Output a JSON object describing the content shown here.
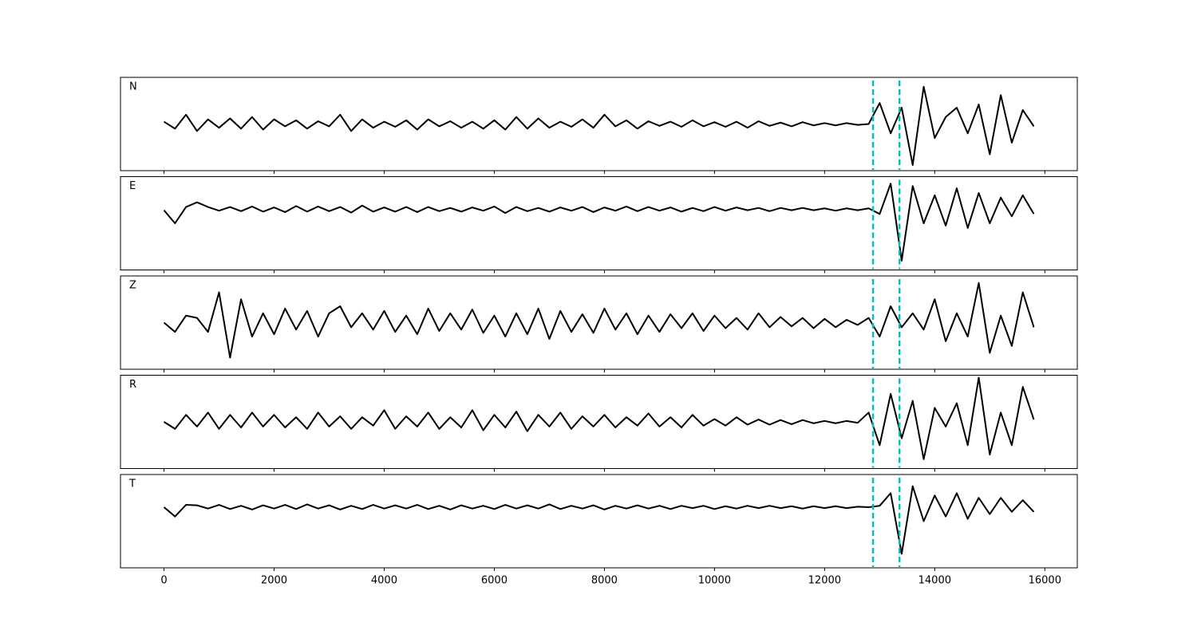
{
  "chart_data": {
    "type": "line",
    "x": [
      0,
      200,
      400,
      600,
      800,
      1000,
      1200,
      1400,
      1600,
      1800,
      2000,
      2200,
      2400,
      2600,
      2800,
      3000,
      3200,
      3400,
      3600,
      3800,
      4000,
      4200,
      4400,
      4600,
      4800,
      5000,
      5200,
      5400,
      5600,
      5800,
      6000,
      6200,
      6400,
      6600,
      6800,
      7000,
      7200,
      7400,
      7600,
      7800,
      8000,
      8200,
      8400,
      8600,
      8800,
      9000,
      9200,
      9400,
      9600,
      9800,
      10000,
      10200,
      10400,
      10600,
      10800,
      11000,
      11200,
      11400,
      11600,
      11800,
      12000,
      12200,
      12400,
      12600,
      12800,
      13000,
      13200,
      13400,
      13600,
      13800,
      14000,
      14200,
      14400,
      14600,
      14800,
      15000,
      15200,
      15400,
      15600,
      15800
    ],
    "xlim": [
      -790,
      16590
    ],
    "xticks": [
      0,
      2000,
      4000,
      6000,
      8000,
      10000,
      12000,
      14000,
      16000
    ],
    "vlines": [
      12880,
      13360
    ],
    "vline_color": "#00bfbf",
    "series": [
      {
        "name": "N",
        "color": "#000000",
        "ylim": [
          -1,
          1
        ],
        "values": [
          0.05,
          -0.1,
          0.2,
          -0.15,
          0.1,
          -0.08,
          0.12,
          -0.1,
          0.15,
          -0.12,
          0.1,
          -0.05,
          0.08,
          -0.1,
          0.06,
          -0.05,
          0.2,
          -0.15,
          0.1,
          -0.08,
          0.05,
          -0.06,
          0.08,
          -0.12,
          0.1,
          -0.05,
          0.06,
          -0.08,
          0.05,
          -0.1,
          0.08,
          -0.12,
          0.15,
          -0.1,
          0.12,
          -0.08,
          0.05,
          -0.06,
          0.1,
          -0.08,
          0.2,
          -0.05,
          0.08,
          -0.1,
          0.06,
          -0.04,
          0.05,
          -0.06,
          0.08,
          -0.05,
          0.04,
          -0.06,
          0.05,
          -0.08,
          0.06,
          -0.04,
          0.03,
          -0.05,
          0.04,
          -0.03,
          0.02,
          -0.03,
          0.02,
          -0.02,
          0.0,
          0.45,
          -0.2,
          0.35,
          -0.88,
          0.8,
          -0.3,
          0.15,
          0.35,
          -0.2,
          0.42,
          -0.65,
          0.62,
          -0.4,
          0.3,
          -0.05
        ]
      },
      {
        "name": "E",
        "color": "#000000",
        "ylim": [
          -1.3,
          0.7
        ],
        "values": [
          -0.02,
          -0.3,
          0.05,
          0.15,
          0.05,
          -0.03,
          0.05,
          -0.04,
          0.06,
          -0.05,
          0.04,
          -0.06,
          0.07,
          -0.05,
          0.06,
          -0.04,
          0.05,
          -0.07,
          0.08,
          -0.05,
          0.04,
          -0.05,
          0.05,
          -0.06,
          0.05,
          -0.04,
          0.03,
          -0.05,
          0.04,
          -0.03,
          0.06,
          -0.08,
          0.05,
          -0.04,
          0.03,
          -0.05,
          0.04,
          -0.03,
          0.05,
          -0.06,
          0.04,
          -0.03,
          0.06,
          -0.04,
          0.05,
          -0.03,
          0.04,
          -0.05,
          0.03,
          -0.04,
          0.05,
          -0.03,
          0.04,
          -0.02,
          0.03,
          -0.04,
          0.03,
          -0.02,
          0.03,
          -0.02,
          0.02,
          -0.03,
          0.02,
          -0.02,
          0.02,
          -0.1,
          0.55,
          -1.1,
          0.5,
          -0.3,
          0.3,
          -0.35,
          0.45,
          -0.4,
          0.35,
          -0.3,
          0.25,
          -0.15,
          0.3,
          -0.1
        ]
      },
      {
        "name": "Z",
        "color": "#000000",
        "ylim": [
          -1,
          1
        ],
        "values": [
          0.0,
          -0.2,
          0.15,
          0.1,
          -0.2,
          0.65,
          -0.75,
          0.5,
          -0.3,
          0.2,
          -0.25,
          0.3,
          -0.15,
          0.25,
          -0.3,
          0.2,
          0.35,
          -0.1,
          0.2,
          -0.15,
          0.25,
          -0.2,
          0.15,
          -0.25,
          0.3,
          -0.18,
          0.2,
          -0.15,
          0.28,
          -0.22,
          0.15,
          -0.3,
          0.2,
          -0.25,
          0.3,
          -0.35,
          0.25,
          -0.2,
          0.18,
          -0.22,
          0.3,
          -0.15,
          0.2,
          -0.25,
          0.15,
          -0.2,
          0.18,
          -0.12,
          0.2,
          -0.18,
          0.15,
          -0.12,
          0.1,
          -0.15,
          0.2,
          -0.1,
          0.12,
          -0.08,
          0.1,
          -0.12,
          0.08,
          -0.1,
          0.06,
          -0.05,
          0.1,
          -0.3,
          0.35,
          -0.1,
          0.2,
          -0.15,
          0.5,
          -0.4,
          0.2,
          -0.3,
          0.85,
          -0.65,
          0.15,
          -0.5,
          0.65,
          -0.1
        ]
      },
      {
        "name": "R",
        "color": "#000000",
        "ylim": [
          -1,
          1
        ],
        "values": [
          0.0,
          -0.15,
          0.15,
          -0.1,
          0.2,
          -0.15,
          0.15,
          -0.12,
          0.2,
          -0.1,
          0.15,
          -0.12,
          0.1,
          -0.15,
          0.2,
          -0.1,
          0.12,
          -0.15,
          0.1,
          -0.08,
          0.25,
          -0.15,
          0.12,
          -0.1,
          0.2,
          -0.15,
          0.1,
          -0.12,
          0.25,
          -0.18,
          0.15,
          -0.12,
          0.22,
          -0.2,
          0.15,
          -0.1,
          0.2,
          -0.15,
          0.12,
          -0.1,
          0.15,
          -0.12,
          0.1,
          -0.08,
          0.18,
          -0.1,
          0.1,
          -0.12,
          0.15,
          -0.08,
          0.06,
          -0.08,
          0.1,
          -0.06,
          0.05,
          -0.06,
          0.04,
          -0.05,
          0.04,
          -0.03,
          0.02,
          -0.03,
          0.02,
          -0.02,
          0.2,
          -0.5,
          0.6,
          -0.35,
          0.45,
          -0.8,
          0.3,
          -0.1,
          0.4,
          -0.5,
          0.95,
          -0.7,
          0.2,
          -0.5,
          0.75,
          0.05
        ]
      },
      {
        "name": "T",
        "color": "#000000",
        "ylim": [
          -1.3,
          0.7
        ],
        "values": [
          0.0,
          -0.2,
          0.05,
          0.04,
          -0.03,
          0.05,
          -0.04,
          0.03,
          -0.05,
          0.04,
          -0.03,
          0.05,
          -0.04,
          0.06,
          -0.03,
          0.04,
          -0.05,
          0.03,
          -0.04,
          0.05,
          -0.03,
          0.04,
          -0.03,
          0.05,
          -0.04,
          0.03,
          -0.05,
          0.04,
          -0.03,
          0.03,
          -0.04,
          0.05,
          -0.03,
          0.04,
          -0.03,
          0.06,
          -0.04,
          0.03,
          -0.03,
          0.04,
          -0.05,
          0.03,
          -0.03,
          0.04,
          -0.03,
          0.03,
          -0.04,
          0.03,
          -0.02,
          0.03,
          -0.04,
          0.02,
          -0.03,
          0.03,
          -0.02,
          0.03,
          -0.02,
          0.02,
          -0.03,
          0.02,
          -0.02,
          0.02,
          -0.02,
          0.01,
          0.0,
          0.03,
          0.3,
          -1.0,
          0.45,
          -0.3,
          0.25,
          -0.2,
          0.3,
          -0.25,
          0.2,
          -0.15,
          0.2,
          -0.1,
          0.15,
          -0.1
        ]
      }
    ]
  }
}
